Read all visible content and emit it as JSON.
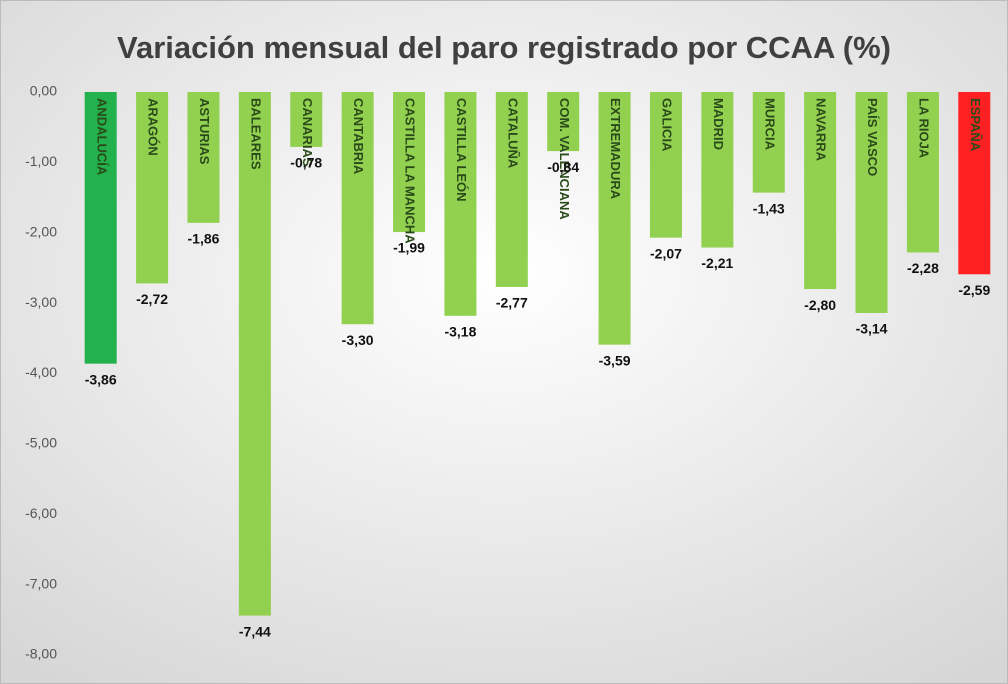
{
  "chart_data": {
    "type": "bar",
    "title": "Variación mensual del paro registrado por CCAA (%)",
    "categories": [
      "ANDALUCÍA",
      "ARAGÓN",
      "ASTURIAS",
      "BALEARES",
      "CANARIAS",
      "CANTABRIA",
      "CASTILLA LA MANCHA",
      "CASTILLA LEÓN",
      "CATALUÑA",
      "COM. VALENCIANA",
      "EXTREMADURA",
      "GALICIA",
      "MADRID",
      "MURCIA",
      "NAVARRA",
      "PAÍS VASCO",
      "LA RIOJA",
      "ESPAÑA"
    ],
    "values": [
      -3.86,
      -2.72,
      -1.86,
      -7.44,
      -0.78,
      -3.3,
      -1.99,
      -3.18,
      -2.77,
      -0.84,
      -3.59,
      -2.07,
      -2.21,
      -1.43,
      -2.8,
      -3.14,
      -2.28,
      -2.59
    ],
    "value_labels": [
      "-3,86",
      "-2,72",
      "-1,86",
      "-7,44",
      "-0,78",
      "-3,30",
      "-1,99",
      "-3,18",
      "-2,77",
      "-0,84",
      "-3,59",
      "-2,07",
      "-2,21",
      "-1,43",
      "-2,80",
      "-3,14",
      "-2,28",
      "-2,59"
    ],
    "colors": [
      "#22b14c",
      "#92d050",
      "#92d050",
      "#92d050",
      "#92d050",
      "#92d050",
      "#92d050",
      "#92d050",
      "#92d050",
      "#92d050",
      "#92d050",
      "#92d050",
      "#92d050",
      "#92d050",
      "#92d050",
      "#92d050",
      "#92d050",
      "#ff2121"
    ],
    "ylim": [
      -8,
      0
    ],
    "yticks": [
      {
        "value": 0,
        "label": "0,00"
      },
      {
        "value": -1,
        "label": "-1,00"
      },
      {
        "value": -2,
        "label": "-2,00"
      },
      {
        "value": -3,
        "label": "-3,00"
      },
      {
        "value": -4,
        "label": "-4,00"
      },
      {
        "value": -5,
        "label": "-5,00"
      },
      {
        "value": -6,
        "label": "-6,00"
      },
      {
        "value": -7,
        "label": "-7,00"
      },
      {
        "value": -8,
        "label": "-8,00"
      }
    ],
    "grid": false
  }
}
